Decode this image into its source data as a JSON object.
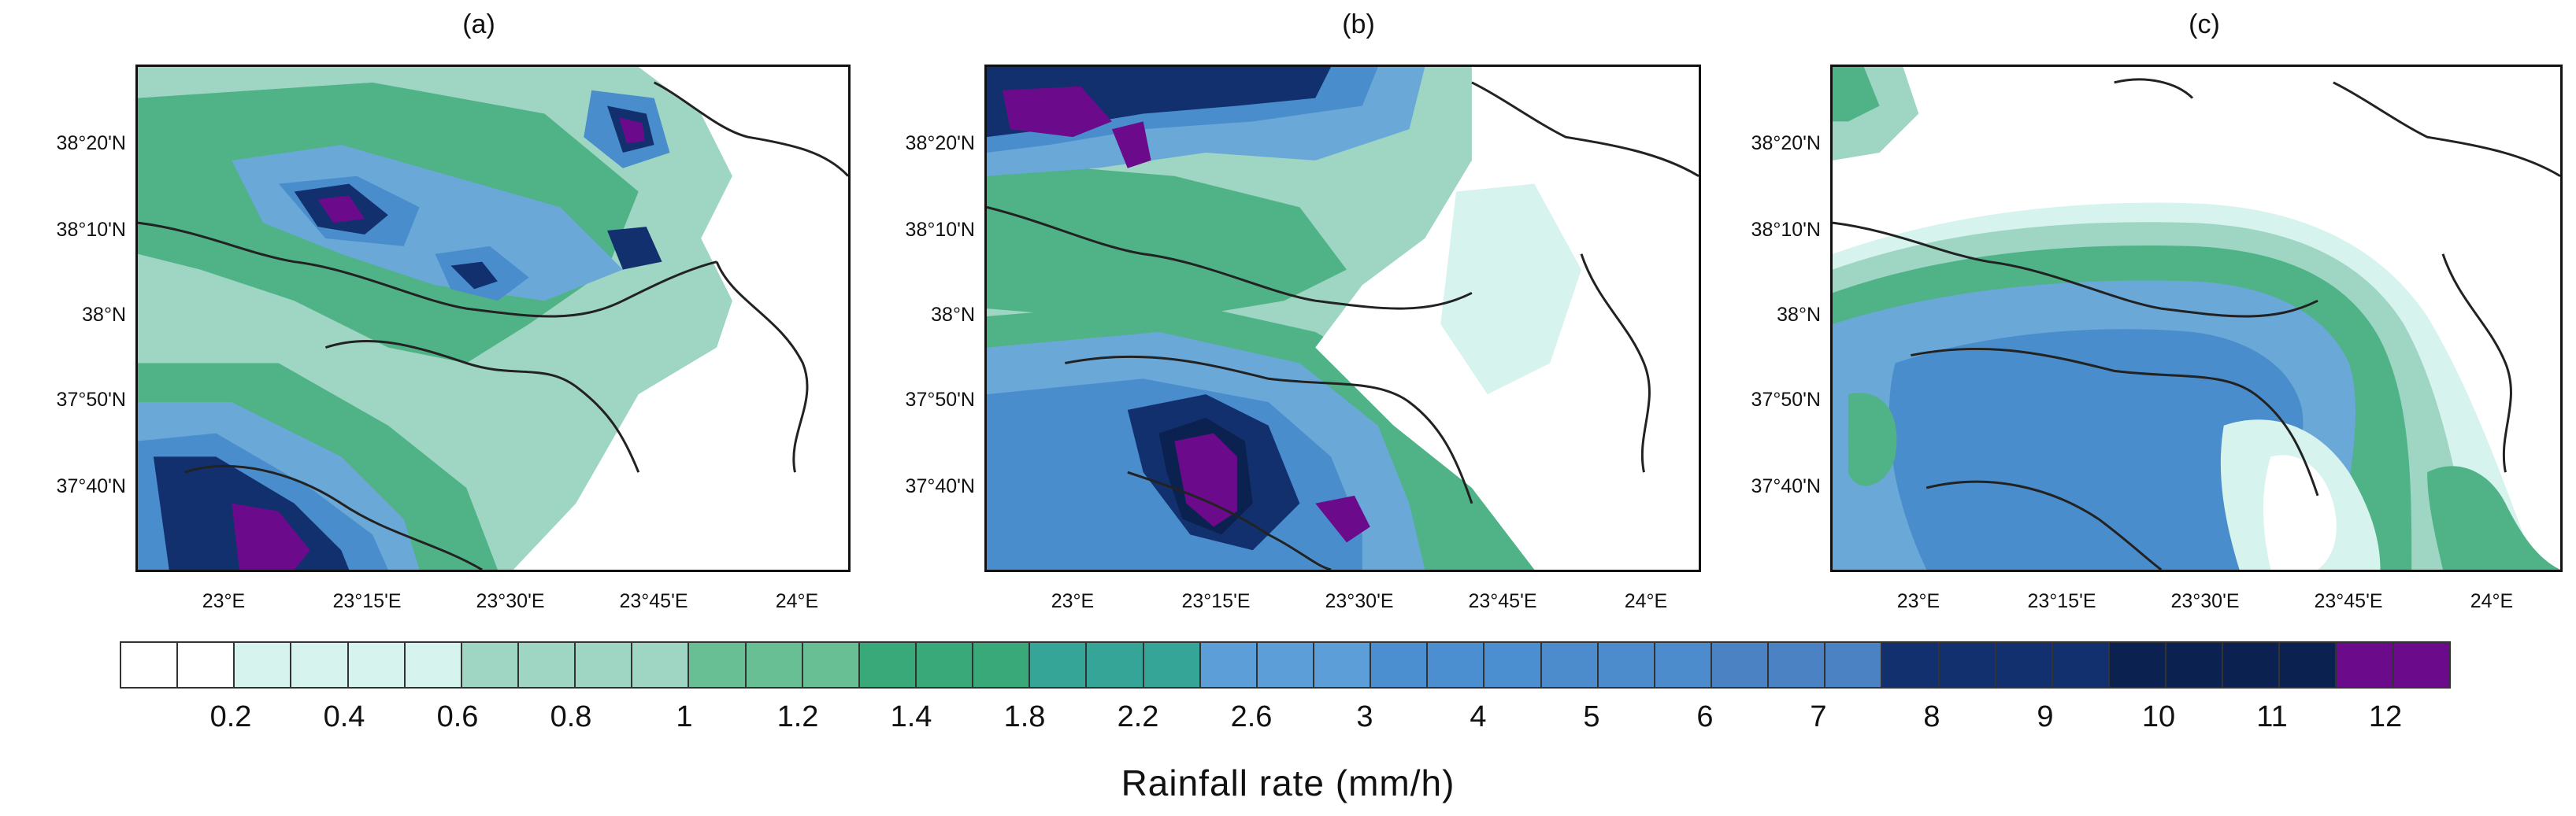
{
  "panels": [
    {
      "label": "(a)",
      "description": "Simulated rainfall rate field, configuration a"
    },
    {
      "label": "(b)",
      "description": "Simulated rainfall rate field, configuration b"
    },
    {
      "label": "(c)",
      "description": "Simulated rainfall rate field, configuration c"
    }
  ],
  "axes": {
    "lat_ticks": [
      "38°20'N",
      "38°10'N",
      "38°N",
      "37°50'N",
      "37°40'N"
    ],
    "lon_ticks": [
      "23°E",
      "23°15'E",
      "23°30'E",
      "23°45'E",
      "24°E"
    ]
  },
  "colorbar": {
    "title": "Rainfall rate (mm/h)",
    "labels": [
      "0.2",
      "0.4",
      "0.6",
      "0.8",
      "1",
      "1.2",
      "1.4",
      "1.8",
      "2.2",
      "2.6",
      "3",
      "4",
      "5",
      "6",
      "7",
      "8",
      "9",
      "10",
      "11",
      "12"
    ],
    "colors": [
      "#ffffff",
      "#ffffff",
      "#d7f3ee",
      "#d7f3ee",
      "#d7f3ee",
      "#d7f3ee",
      "#9fd6c3",
      "#9fd6c3",
      "#9fd6c3",
      "#9fd6c3",
      "#68bf93",
      "#68bf93",
      "#68bf93",
      "#3aa97a",
      "#3aa97a",
      "#3aa97a",
      "#34a596",
      "#34a596",
      "#34a596",
      "#5c9ed8",
      "#5c9ed8",
      "#5c9ed8",
      "#4b8fd0",
      "#4b8fd0",
      "#4b8fd0",
      "#4c8bcc",
      "#4c8bcc",
      "#4c8bcc",
      "#4a82c4",
      "#4a82c4",
      "#4a82c4",
      "#13306e",
      "#13306e",
      "#13306e",
      "#13306e",
      "#0b2250",
      "#0b2250",
      "#0b2250",
      "#0b2250",
      "#6c0a8c",
      "#6c0a8c"
    ]
  },
  "map_colors": {
    "white": "#ffffff",
    "very_light": "#d7f3ee",
    "light_green": "#9fd6c3",
    "green": "#4fb387",
    "light_blue": "#6aa8d8",
    "blue": "#4a8dcc",
    "navy": "#13306e",
    "dark_navy": "#0b2250",
    "purple": "#6c0a8c",
    "coast": "#222222"
  }
}
